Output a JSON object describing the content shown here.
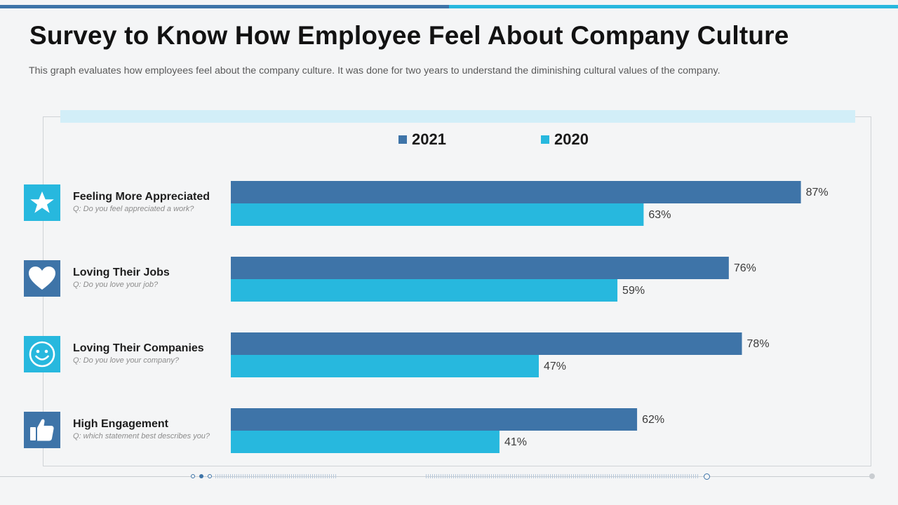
{
  "header": {
    "title": "Survey to Know How Employee Feel About Company Culture",
    "subtitle": "This graph evaluates how employees feel about the company culture. It was done for two years to understand the diminishing cultural values of the company."
  },
  "colors": {
    "series_2021": "#3e74a8",
    "series_2020": "#27b8de"
  },
  "categories_info": [
    {
      "label": "Feeling More Appreciated",
      "question": "Q: Do you feel appreciated a work?",
      "icon": "star-icon"
    },
    {
      "label": "Loving Their Jobs",
      "question": "Q: Do you love your job?",
      "icon": "heart-icon"
    },
    {
      "label": "Loving Their Companies",
      "question": "Q: Do you love your company?",
      "icon": "smiley-icon"
    },
    {
      "label": "High Engagement",
      "question": "Q: which statement best describes you?",
      "icon": "thumbs-up-icon"
    }
  ],
  "chart_data": {
    "type": "bar",
    "orientation": "horizontal",
    "title": "Survey to Know How Employee Feel About Company Culture",
    "categories": [
      "Feeling More Appreciated",
      "Loving Their Jobs",
      "Loving Their Companies",
      "High Engagement"
    ],
    "series": [
      {
        "name": "2021",
        "values": [
          87,
          76,
          78,
          62
        ]
      },
      {
        "name": "2020",
        "values": [
          63,
          59,
          47,
          41
        ]
      }
    ],
    "value_suffix": "%",
    "xlim": [
      0,
      100
    ],
    "legend": "top-center",
    "xlabel": "",
    "ylabel": "",
    "grid": false
  }
}
